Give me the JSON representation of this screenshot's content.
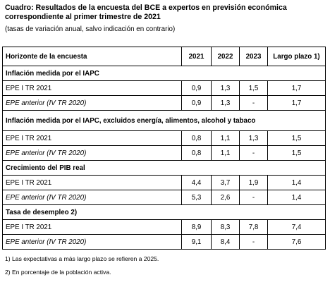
{
  "title": "Cuadro: Resultados de la encuesta del BCE a expertos en previsión económica correspondiente al primer trimestre de 2021",
  "subtitle": "(tasas de variación anual, salvo indicación en contrario)",
  "table": {
    "headers": [
      "Horizonte de la encuesta",
      "2021",
      "2022",
      "2023",
      "Largo plazo 1)"
    ],
    "sections": [
      {
        "heading": "Inflación medida por el IAPC",
        "rows": [
          {
            "label": "EPE I TR 2021",
            "values": [
              "0,9",
              "1,3",
              "1,5",
              "1,7"
            ],
            "italic": false
          },
          {
            "label": "EPE anterior (IV TR 2020)",
            "values": [
              "0,9",
              "1,3",
              "-",
              "1,7"
            ],
            "italic": true
          }
        ]
      },
      {
        "heading": "Inflación medida por el IAPC, excluidos energía, alimentos, alcohol y tabaco",
        "rows": [
          {
            "label": "EPE I TR 2021",
            "values": [
              "0,8",
              "1,1",
              "1,3",
              "1,5"
            ],
            "italic": false
          },
          {
            "label": "EPE anterior (IV TR 2020)",
            "values": [
              "0,8",
              "1,1",
              "-",
              "1,5"
            ],
            "italic": true
          }
        ]
      },
      {
        "heading": "Crecimiento del PIB real",
        "rows": [
          {
            "label": "EPE I TR 2021",
            "values": [
              "4,4",
              "3,7",
              "1,9",
              "1,4"
            ],
            "italic": false
          },
          {
            "label": "EPE anterior (IV TR 2020)",
            "values": [
              "5,3",
              "2,6",
              "-",
              "1,4"
            ],
            "italic": true
          }
        ]
      },
      {
        "heading": "Tasa de desempleo 2)",
        "rows": [
          {
            "label": "EPE I TR 2021",
            "values": [
              "8,9",
              "8,3",
              "7,8",
              "7,4"
            ],
            "italic": false
          },
          {
            "label": "EPE anterior (IV TR 2020)",
            "values": [
              "9,1",
              "8,4",
              "-",
              "7,6"
            ],
            "italic": true
          }
        ]
      }
    ]
  },
  "notes": [
    "1) Las expectativas a más largo plazo se refieren a 2025.",
    "2) En porcentaje de la población activa."
  ]
}
